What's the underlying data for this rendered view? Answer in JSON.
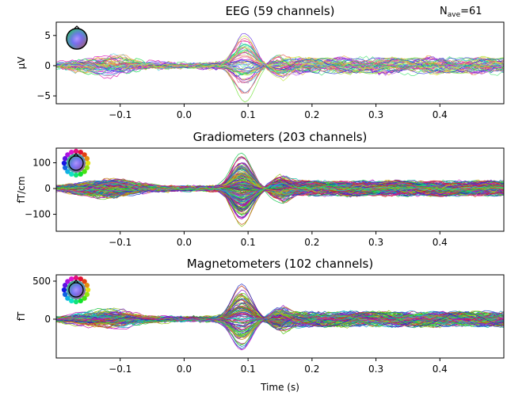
{
  "annotation": {
    "nave_prefix": "N",
    "nave_sub": "ave",
    "nave_value": "=61"
  },
  "chart_data": [
    {
      "type": "line",
      "title": "EEG (59 channels)",
      "ylabel": "µV",
      "xlabel": "",
      "n_channels": 59,
      "xlim": [
        -0.2,
        0.5
      ],
      "ylim": [
        -6.3,
        7.2
      ],
      "xticks": [
        -0.1,
        0.0,
        0.1,
        0.2,
        0.3,
        0.4
      ],
      "xtick_labels": [
        "−0.1",
        "0.0",
        "0.1",
        "0.2",
        "0.3",
        "0.4"
      ],
      "yticks": [
        5,
        0,
        -5
      ],
      "ytick_labels": [
        "5",
        "0",
        "−5"
      ],
      "peak_latency_s": 0.095,
      "peak_range": [
        -5.8,
        6.8
      ],
      "sensor_icon": "head-topomap-icon"
    },
    {
      "type": "line",
      "title": "Gradiometers (203 channels)",
      "ylabel": "fT/cm",
      "xlabel": "",
      "n_channels": 203,
      "xlim": [
        -0.2,
        0.5
      ],
      "ylim": [
        -166,
        157
      ],
      "xticks": [
        -0.1,
        0.0,
        0.1,
        0.2,
        0.3,
        0.4
      ],
      "xtick_labels": [
        "−0.1",
        "0.0",
        "0.1",
        "0.2",
        "0.3",
        "0.4"
      ],
      "yticks": [
        100,
        0,
        -100
      ],
      "ytick_labels": [
        "100",
        "0",
        "−100"
      ],
      "peak_latency_s": 0.09,
      "peak_range": [
        -150,
        150
      ],
      "sensor_icon": "head-topomap-icon"
    },
    {
      "type": "line",
      "title": "Magnetometers (102 channels)",
      "ylabel": "fT",
      "xlabel": "Time (s)",
      "n_channels": 102,
      "xlim": [
        -0.2,
        0.5
      ],
      "ylim": [
        -510,
        583
      ],
      "xticks": [
        -0.1,
        0.0,
        0.1,
        0.2,
        0.3,
        0.4
      ],
      "xtick_labels": [
        "−0.1",
        "0.0",
        "0.1",
        "0.2",
        "0.3",
        "0.4"
      ],
      "yticks": [
        500,
        0
      ],
      "ytick_labels": [
        "500",
        "0"
      ],
      "peak_latency_s": 0.09,
      "peak_range": [
        -450,
        520
      ],
      "sensor_icon": "head-topomap-icon"
    }
  ]
}
